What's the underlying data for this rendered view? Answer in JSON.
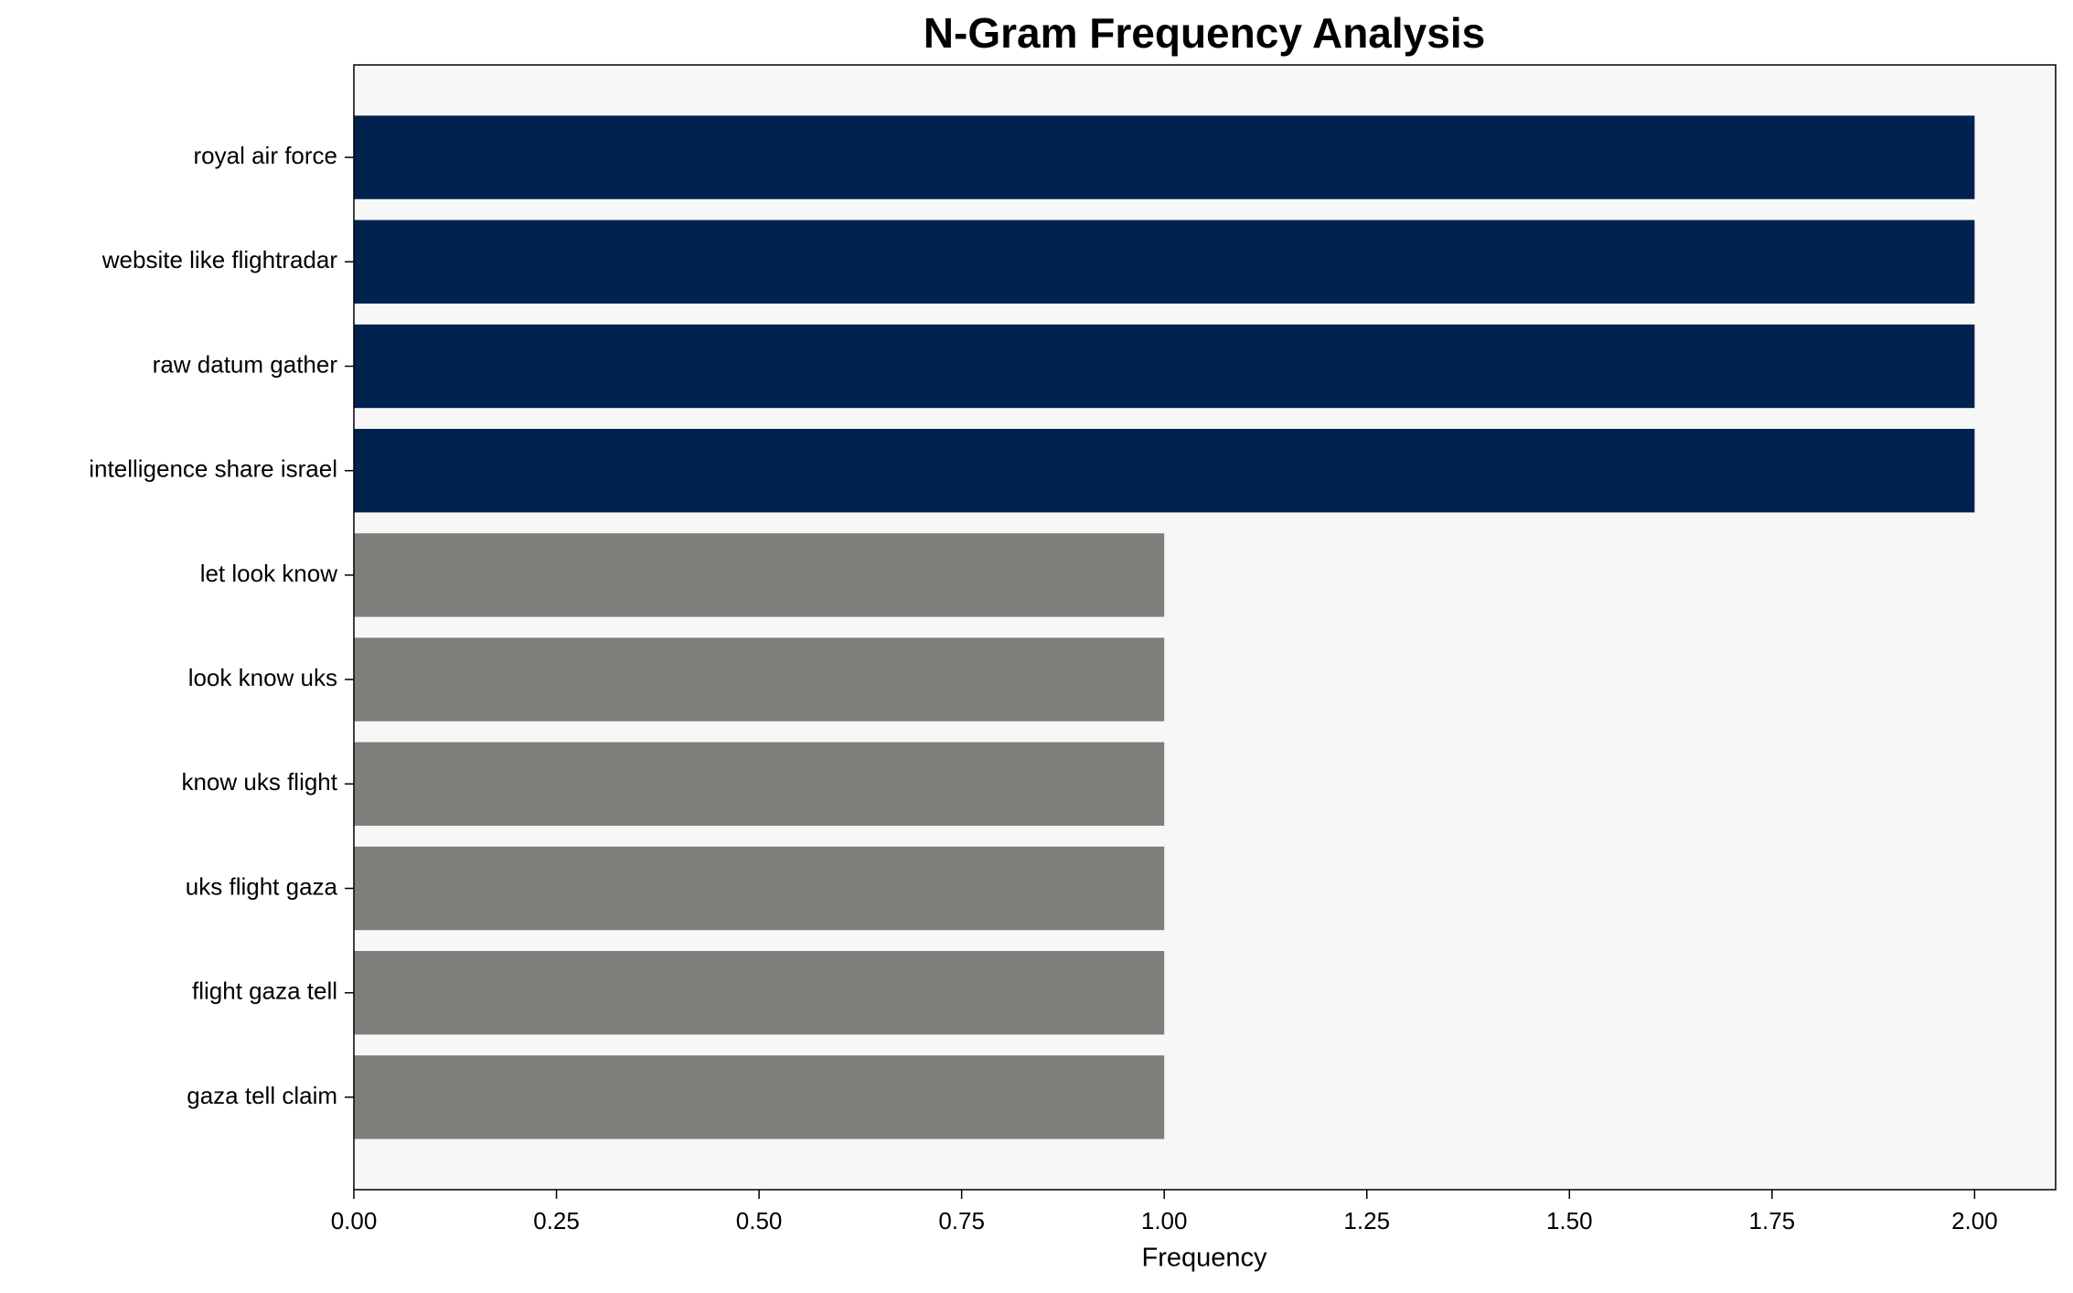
{
  "chart_data": {
    "type": "barh",
    "title": "N-Gram Frequency Analysis",
    "x_label": "Frequency",
    "categories": [
      "royal air force",
      "website like flightradar",
      "raw datum gather",
      "intelligence share israel",
      "let look know",
      "look know uks",
      "know uks flight",
      "uks flight gaza",
      "flight gaza tell",
      "gaza tell claim"
    ],
    "values": [
      2,
      2,
      2,
      2,
      1,
      1,
      1,
      1,
      1,
      1
    ],
    "colors": [
      "#00224e",
      "#00224e",
      "#00224e",
      "#00224e",
      "#7f7e7a",
      "#7f7e7a",
      "#7f7e7a",
      "#7f7e7a",
      "#7f7e7a",
      "#7f7e7a"
    ],
    "xlim": [
      0,
      2.1
    ],
    "xticks": [
      {
        "value": 0,
        "label": "0.00"
      },
      {
        "value": 0.25,
        "label": "0.25"
      },
      {
        "value": 0.5,
        "label": "0.50"
      },
      {
        "value": 0.75,
        "label": "0.75"
      },
      {
        "value": 1,
        "label": "1.00"
      },
      {
        "value": 1.25,
        "label": "1.25"
      },
      {
        "value": 1.5,
        "label": "1.50"
      },
      {
        "value": 1.75,
        "label": "1.75"
      },
      {
        "value": 2,
        "label": "2.00"
      }
    ],
    "plot_background": "#f7f7f7",
    "grid": false
  }
}
